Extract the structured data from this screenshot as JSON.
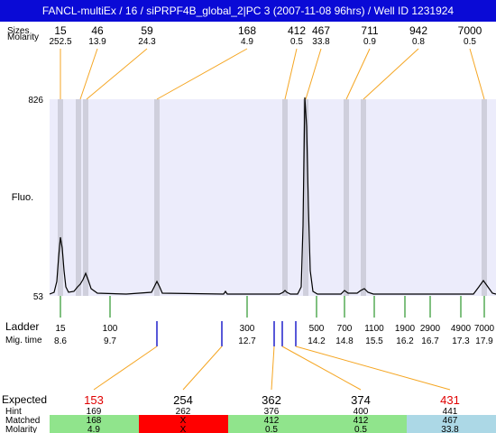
{
  "title": "FANCL-multiEx / 16 / siPRPF4B_global_2|PC 3 (2007-11-08 96hrs) / Well ID 1231924",
  "labels": {
    "sizes": "Sizes",
    "molarity": "Molarity",
    "fluo": "Fluo.",
    "ladder": "Ladder",
    "mig_time": "Mig. time",
    "expected": "Expected",
    "hint": "Hint",
    "matched": "Matched",
    "molarity_bottom": "Molarity"
  },
  "colors": {
    "plot_bg": "#ececfb",
    "band": "#cfcfdc",
    "leader": "#f5a623",
    "ladder_tick": "#008000",
    "blue_tick": "#1010c8",
    "title_bg": "#0a0ad6",
    "expected_highlight": "#e00000",
    "row_green": "#90e48c",
    "row_red": "#ff0000",
    "row_blue": "#acd8e6"
  },
  "chart_data": {
    "type": "line",
    "y_axis": {
      "max": 826,
      "min": 53
    },
    "sizes_peaks": [
      {
        "size": "15",
        "molarity": "252.5"
      },
      {
        "size": "46",
        "molarity": "13.9"
      },
      {
        "size": "59",
        "molarity": "24.3"
      },
      {
        "size": "168",
        "molarity": "4.9"
      },
      {
        "size": "412",
        "molarity": "0.5"
      },
      {
        "size": "467",
        "molarity": "33.8"
      },
      {
        "size": "711",
        "molarity": "0.9"
      },
      {
        "size": "942",
        "molarity": "0.8"
      },
      {
        "size": "7000",
        "molarity": "0.5"
      }
    ],
    "ladder": [
      {
        "size": "15",
        "time": "8.6"
      },
      {
        "size": "100",
        "time": "9.7"
      },
      {
        "size": "300",
        "time": "12.7"
      },
      {
        "size": "500",
        "time": "14.2"
      },
      {
        "size": "700",
        "time": "14.8"
      },
      {
        "size": "1100",
        "time": "15.5"
      },
      {
        "size": "1900",
        "time": "16.2"
      },
      {
        "size": "2900",
        "time": "16.7"
      },
      {
        "size": "4900",
        "time": "17.3"
      },
      {
        "size": "7000",
        "time": "17.9"
      }
    ],
    "expected": [
      {
        "expected": "153",
        "hint": "169",
        "matched": "168",
        "molarity": "4.9",
        "status": "match",
        "highlight": true
      },
      {
        "expected": "254",
        "hint": "262",
        "matched": "X",
        "molarity": "X",
        "status": "missing",
        "highlight": false
      },
      {
        "expected": "362",
        "hint": "376",
        "matched": "412",
        "molarity": "0.5",
        "status": "match",
        "highlight": false
      },
      {
        "expected": "374",
        "hint": "400",
        "matched": "412",
        "molarity": "0.5",
        "status": "match",
        "highlight": false
      },
      {
        "expected": "431",
        "hint": "441",
        "matched": "467",
        "molarity": "33.8",
        "status": "extra",
        "highlight": true
      }
    ]
  }
}
